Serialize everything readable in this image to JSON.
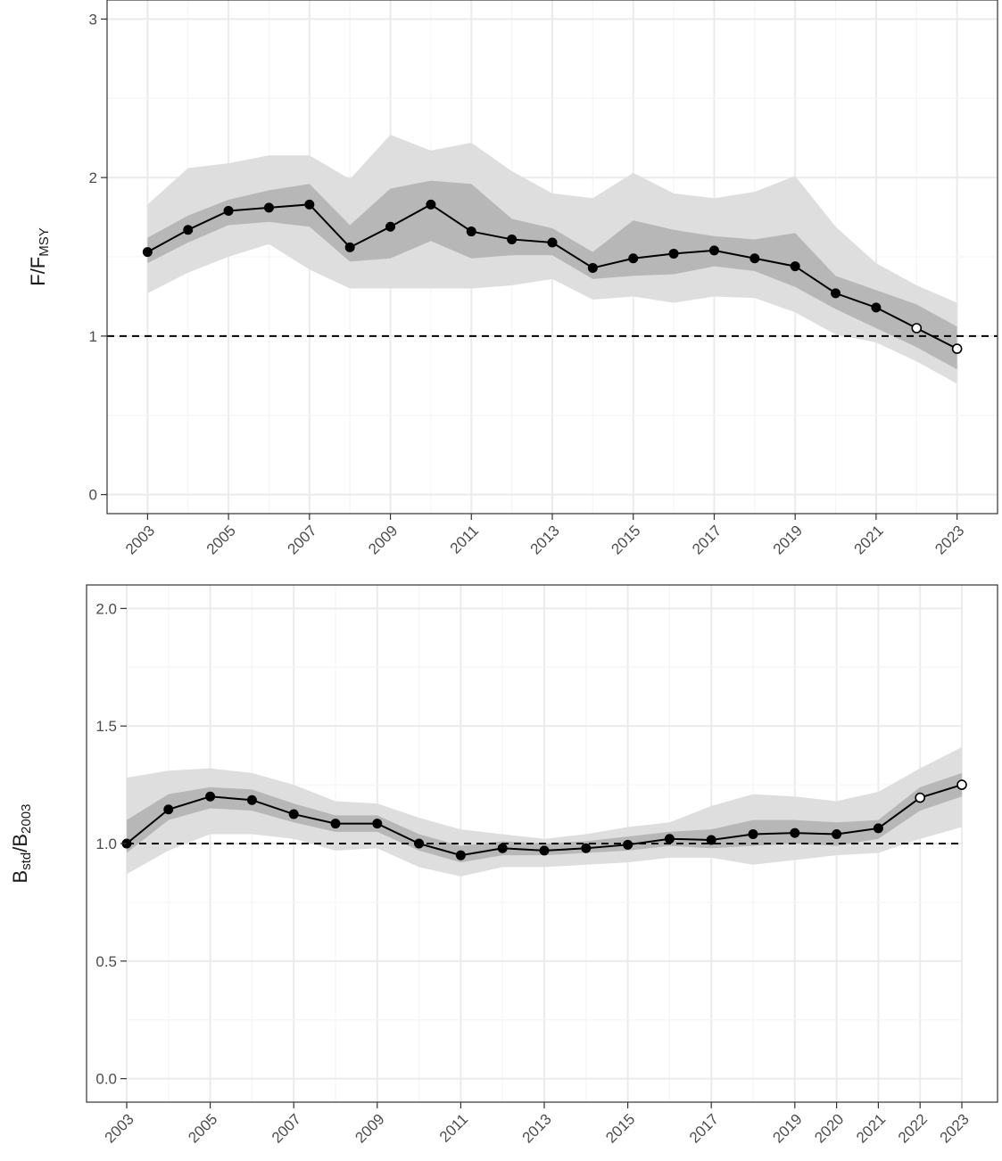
{
  "chart_data": [
    {
      "type": "line",
      "ylabel_main": "F/F",
      "ylabel_sub": "MSY",
      "ylim": [
        -0.12,
        3.12
      ],
      "xlim": [
        2002,
        2024
      ],
      "y_ticks": [
        "0",
        "1",
        "2",
        "3"
      ],
      "y_tick_values": [
        0,
        1,
        2,
        3
      ],
      "x_tick_labels": [
        "2003",
        "2005",
        "2007",
        "2009",
        "2011",
        "2013",
        "2015",
        "2017",
        "2019",
        "2021",
        "2023"
      ],
      "x_tick_values": [
        2003,
        2005,
        2007,
        2009,
        2011,
        2013,
        2015,
        2017,
        2019,
        2021,
        2023
      ],
      "reference_line": 1,
      "grid": true,
      "x": [
        2003,
        2004,
        2005,
        2006,
        2007,
        2008,
        2009,
        2010,
        2011,
        2012,
        2013,
        2014,
        2015,
        2016,
        2017,
        2018,
        2019,
        2020,
        2021,
        2022,
        2023
      ],
      "values": [
        1.53,
        1.67,
        1.79,
        1.81,
        1.83,
        1.56,
        1.69,
        1.83,
        1.66,
        1.61,
        1.59,
        1.43,
        1.49,
        1.52,
        1.54,
        1.49,
        1.44,
        1.27,
        1.18,
        1.05,
        0.92
      ],
      "open_points": [
        2022,
        2023
      ],
      "band_80_lower": [
        1.46,
        1.59,
        1.7,
        1.72,
        1.69,
        1.47,
        1.49,
        1.6,
        1.49,
        1.51,
        1.51,
        1.36,
        1.38,
        1.39,
        1.44,
        1.41,
        1.31,
        1.17,
        1.05,
        0.93,
        0.79
      ],
      "band_80_upper": [
        1.62,
        1.76,
        1.86,
        1.92,
        1.96,
        1.7,
        1.93,
        1.98,
        1.96,
        1.74,
        1.68,
        1.53,
        1.73,
        1.67,
        1.63,
        1.61,
        1.65,
        1.38,
        1.29,
        1.2,
        1.06
      ],
      "band_95_lower": [
        1.27,
        1.4,
        1.5,
        1.58,
        1.42,
        1.3,
        1.3,
        1.3,
        1.3,
        1.32,
        1.36,
        1.23,
        1.25,
        1.21,
        1.25,
        1.24,
        1.15,
        1.01,
        0.96,
        0.84,
        0.7
      ],
      "band_95_upper": [
        1.83,
        2.06,
        2.09,
        2.14,
        2.14,
        1.99,
        2.27,
        2.17,
        2.22,
        2.04,
        1.9,
        1.87,
        2.03,
        1.9,
        1.87,
        1.91,
        2.01,
        1.69,
        1.46,
        1.32,
        1.21
      ],
      "colors": {
        "band_outer": "#dedede",
        "band_inner": "#b7b7b7",
        "line": "#000000",
        "grid_major": "#ebebeb",
        "grid_minor": "#f5f5f5",
        "panel_border": "#333333"
      }
    },
    {
      "type": "line",
      "ylabel_main": "B",
      "ylabel_sub1": "std",
      "ylabel_mid": "/B",
      "ylabel_sub2": "2003",
      "ylim": [
        -0.1,
        2.1
      ],
      "xlim": [
        2003,
        2023
      ],
      "y_ticks": [
        "0.0",
        "0.5",
        "1.0",
        "1.5",
        "2.0"
      ],
      "y_tick_values": [
        0,
        0.5,
        1.0,
        1.5,
        2.0
      ],
      "x_tick_labels": [
        "2003",
        "2005",
        "2007",
        "2009",
        "2011",
        "2013",
        "2015",
        "2017",
        "2019",
        "2020",
        "2021",
        "2022",
        "2023"
      ],
      "x_tick_values": [
        2003,
        2005,
        2007,
        2009,
        2011,
        2013,
        2015,
        2017,
        2019,
        2020,
        2021,
        2022,
        2023
      ],
      "reference_line": 1,
      "grid": true,
      "x": [
        2003,
        2004,
        2005,
        2006,
        2007,
        2008,
        2009,
        2010,
        2011,
        2012,
        2013,
        2014,
        2015,
        2016,
        2017,
        2018,
        2019,
        2020,
        2021,
        2022,
        2023
      ],
      "values": [
        1.0,
        1.145,
        1.2,
        1.185,
        1.125,
        1.085,
        1.085,
        1.0,
        0.95,
        0.98,
        0.97,
        0.98,
        0.995,
        1.02,
        1.015,
        1.04,
        1.045,
        1.04,
        1.065,
        1.195,
        1.25
      ],
      "open_points": [
        2022,
        2023
      ],
      "band_80_lower": [
        0.96,
        1.1,
        1.15,
        1.14,
        1.09,
        1.05,
        1.05,
        0.97,
        0.92,
        0.95,
        0.95,
        0.96,
        0.97,
        0.99,
        0.98,
        0.99,
        1.0,
        0.99,
        1.02,
        1.14,
        1.2
      ],
      "band_80_upper": [
        1.1,
        1.21,
        1.24,
        1.23,
        1.17,
        1.12,
        1.12,
        1.04,
        0.99,
        1.01,
        1.0,
        1.01,
        1.03,
        1.05,
        1.06,
        1.1,
        1.1,
        1.09,
        1.1,
        1.24,
        1.3
      ],
      "band_95_lower": [
        0.87,
        0.97,
        1.04,
        1.04,
        1.02,
        0.97,
        0.98,
        0.9,
        0.86,
        0.9,
        0.9,
        0.91,
        0.92,
        0.94,
        0.94,
        0.91,
        0.93,
        0.95,
        0.96,
        1.02,
        1.07
      ],
      "band_95_upper": [
        1.28,
        1.31,
        1.32,
        1.3,
        1.25,
        1.18,
        1.17,
        1.11,
        1.06,
        1.04,
        1.02,
        1.04,
        1.07,
        1.09,
        1.16,
        1.21,
        1.2,
        1.18,
        1.22,
        1.32,
        1.41
      ],
      "colors": {
        "band_outer": "#dedede",
        "band_inner": "#b7b7b7",
        "line": "#000000",
        "grid_major": "#ebebeb",
        "grid_minor": "#f5f5f5",
        "panel_border": "#333333"
      }
    }
  ]
}
